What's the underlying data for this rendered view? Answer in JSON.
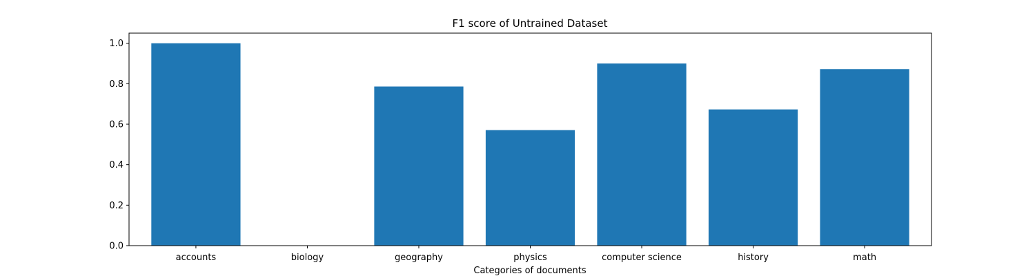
{
  "chart_data": {
    "type": "bar",
    "title": "F1 score of Untrained Dataset",
    "xlabel": "Categories of documents",
    "ylabel": "",
    "categories": [
      "accounts",
      "biology",
      "geography",
      "physics",
      "computer science",
      "history",
      "math"
    ],
    "values": [
      1.0,
      0.0,
      0.786,
      0.571,
      0.9,
      0.673,
      0.872
    ],
    "ylim": [
      0,
      1.05
    ],
    "yticks": [
      "0.0",
      "0.2",
      "0.4",
      "0.6",
      "0.8",
      "1.0"
    ],
    "grid": false,
    "legend": "none",
    "colors": {
      "bar": "#1f77b4",
      "axis": "#000000"
    }
  }
}
